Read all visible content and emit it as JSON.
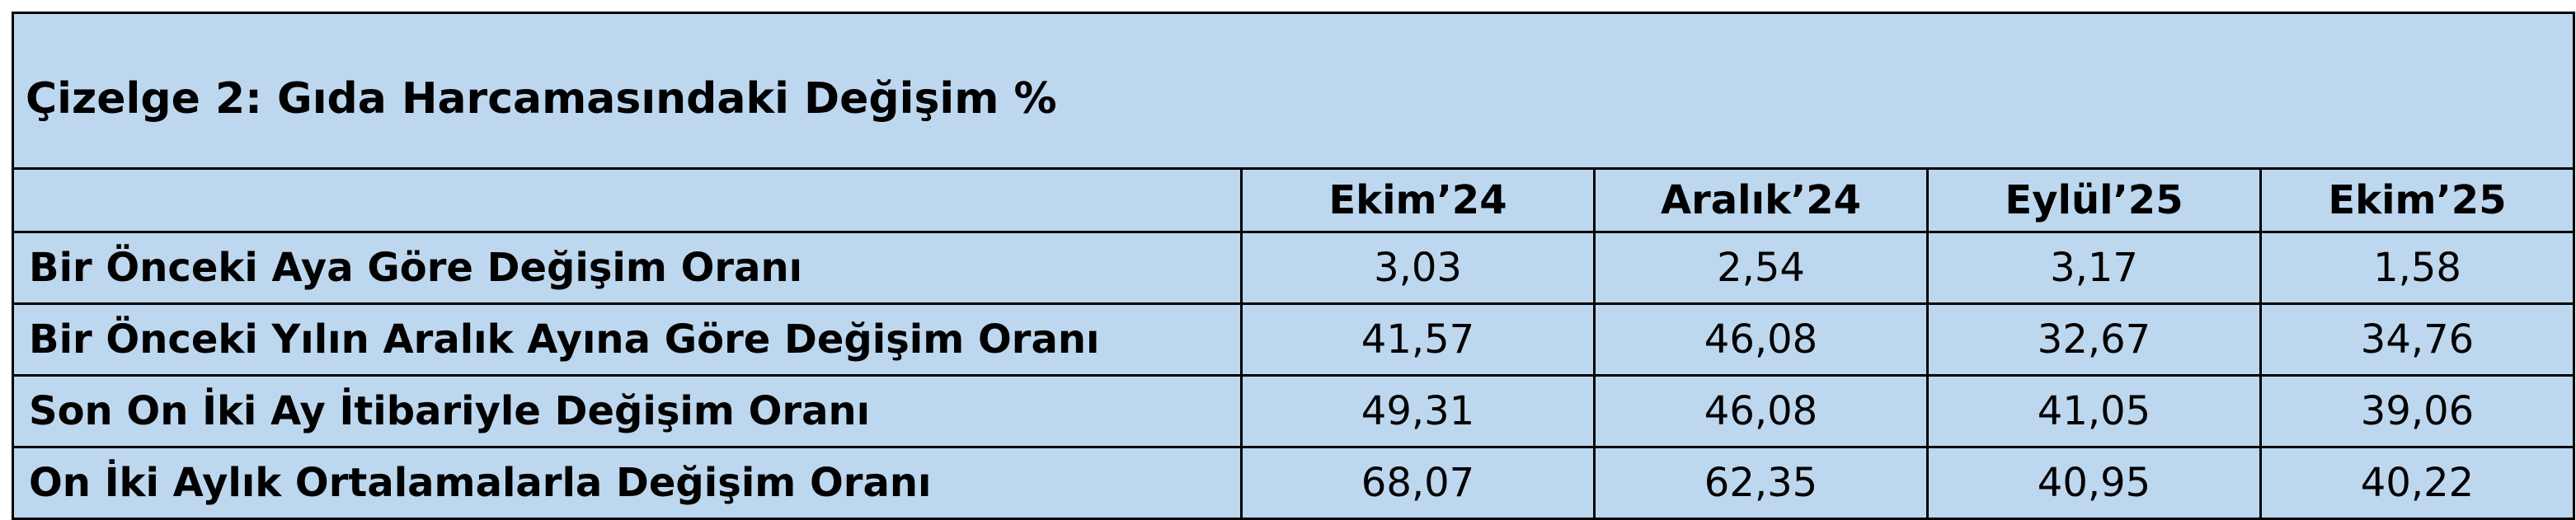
{
  "header": {
    "title": "Çizelge 2: Gıda Harcamasındaki Değişim %"
  },
  "table": {
    "columns": [
      "Ekim’24",
      "Aralık’24",
      "Eylül’25",
      "Ekim’25"
    ],
    "rows": [
      {
        "label": "Bir Önceki Aya Göre Değişim Oranı",
        "values": [
          "3,03",
          "2,54",
          "3,17",
          "1,58"
        ]
      },
      {
        "label": "Bir Önceki Yılın Aralık Ayına Göre Değişim Oranı",
        "values": [
          "41,57",
          "46,08",
          "32,67",
          "34,76"
        ]
      },
      {
        "label": "Son On İki Ay İtibariyle Değişim Oranı",
        "values": [
          "49,31",
          "46,08",
          "41,05",
          "39,06"
        ]
      },
      {
        "label": "On İki Aylık Ortalamalarla Değişim Oranı",
        "values": [
          "68,07",
          "62,35",
          "40,95",
          "40,22"
        ]
      }
    ]
  }
}
